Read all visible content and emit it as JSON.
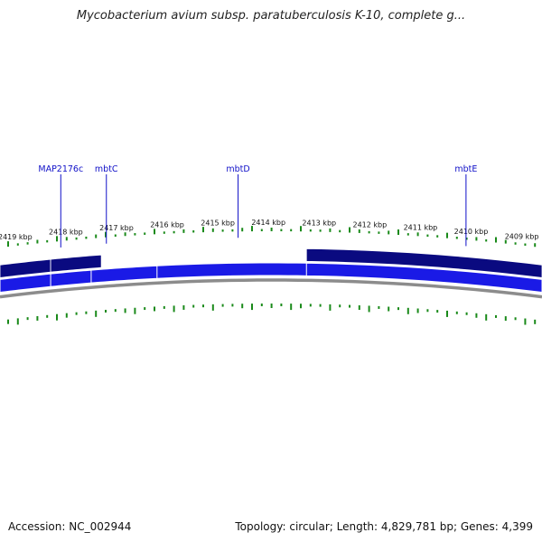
{
  "title": "Mycobacterium avium subsp. paratuberculosis K-10, complete g...",
  "footer": {
    "accession": "Accession: NC_002944",
    "summary": "Topology: circular; Length: 4,829,781 bp; Genes: 4,399"
  },
  "map": {
    "view_start_kbp": 2419.3,
    "view_end_kbp": 2408.6,
    "kbp_ticks": [
      {
        "pos": 2419,
        "label": "2419 kbp"
      },
      {
        "pos": 2418,
        "label": "2418 kbp"
      },
      {
        "pos": 2417,
        "label": "2417 kbp"
      },
      {
        "pos": 2416,
        "label": "2416 kbp"
      },
      {
        "pos": 2415,
        "label": "2415 kbp"
      },
      {
        "pos": 2414,
        "label": "2414 kbp"
      },
      {
        "pos": 2413,
        "label": "2413 kbp"
      },
      {
        "pos": 2412,
        "label": "2412 kbp"
      },
      {
        "pos": 2411,
        "label": "2411 kbp"
      },
      {
        "pos": 2410,
        "label": "2410 kbp"
      },
      {
        "pos": 2409,
        "label": "2409 kbp"
      }
    ],
    "gene_labels": [
      {
        "name": "MAP2176c",
        "pos": 2418.1
      },
      {
        "name": "mbtC",
        "pos": 2417.2
      },
      {
        "name": "mbtD",
        "pos": 2414.6
      },
      {
        "name": "mbtE",
        "pos": 2410.1
      }
    ],
    "reverse_features": [
      {
        "start": 2419.3,
        "end": 2418.3
      },
      {
        "start": 2418.3,
        "end": 2417.3
      },
      {
        "start": 2413.25,
        "end": 2408.6
      }
    ],
    "forward_genes": [
      {
        "start": 2419.3,
        "end": 2418.3
      },
      {
        "start": 2418.3,
        "end": 2417.5
      },
      {
        "start": 2417.5,
        "end": 2416.2
      },
      {
        "start": 2416.2,
        "end": 2413.25
      },
      {
        "start": 2413.25,
        "end": 2408.6
      }
    ],
    "colors": {
      "reverse_strand": "#0a0a80",
      "forward_strand": "#1a1ae6",
      "backbone": "#8c8c8c",
      "tick": "#1a8a1a",
      "gene_label": "#1010c8"
    }
  }
}
